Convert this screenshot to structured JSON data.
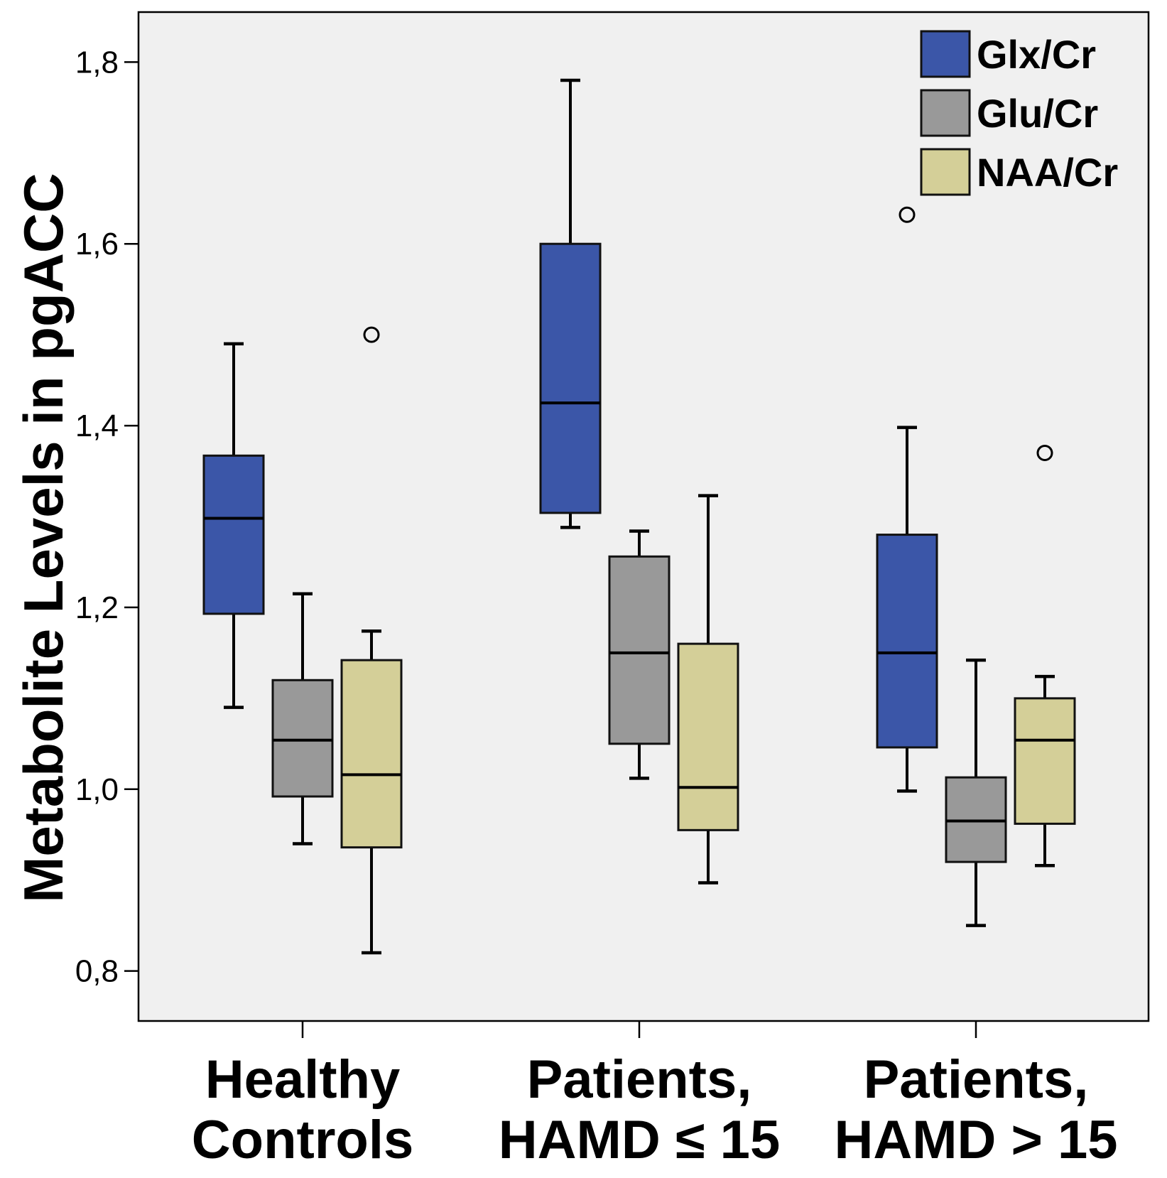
{
  "chart_data": {
    "type": "boxplot",
    "ylabel": "Metabolite Levels in pgACC",
    "xlabel": "",
    "ylim": [
      0.745,
      1.855
    ],
    "yticks": [
      0.8,
      1.0,
      1.2,
      1.4,
      1.6,
      1.8
    ],
    "ytick_labels": [
      "0,8",
      "1,0",
      "1,2",
      "1,4",
      "1,6",
      "1,8"
    ],
    "categories": [
      {
        "line1": "Healthy",
        "line2": "Controls"
      },
      {
        "line1": "Patients,",
        "line2": "HAMD ≤ 15"
      },
      {
        "line1": "Patients,",
        "line2": "HAMD > 15"
      }
    ],
    "legend_position": "top-right",
    "grid": false,
    "series": [
      {
        "name": "Glx/Cr",
        "color": "#3b56a8",
        "boxes": [
          {
            "min": 1.09,
            "q1": 1.193,
            "median": 1.298,
            "q3": 1.367,
            "max": 1.49,
            "outliers": []
          },
          {
            "min": 1.288,
            "q1": 1.304,
            "median": 1.425,
            "q3": 1.6,
            "max": 1.78,
            "outliers": []
          },
          {
            "min": 0.998,
            "q1": 1.046,
            "median": 1.15,
            "q3": 1.28,
            "max": 1.398,
            "outliers": [
              1.632
            ]
          }
        ]
      },
      {
        "name": "Glu/Cr",
        "color": "#999999",
        "boxes": [
          {
            "min": 0.94,
            "q1": 0.992,
            "median": 1.054,
            "q3": 1.12,
            "max": 1.215,
            "outliers": []
          },
          {
            "min": 1.012,
            "q1": 1.05,
            "median": 1.15,
            "q3": 1.256,
            "max": 1.284,
            "outliers": []
          },
          {
            "min": 0.85,
            "q1": 0.92,
            "median": 0.965,
            "q3": 1.013,
            "max": 1.142,
            "outliers": []
          }
        ]
      },
      {
        "name": "NAA/Cr",
        "color": "#d4cf98",
        "boxes": [
          {
            "min": 0.82,
            "q1": 0.936,
            "median": 1.016,
            "q3": 1.142,
            "max": 1.174,
            "outliers": [
              1.5
            ]
          },
          {
            "min": 0.897,
            "q1": 0.955,
            "median": 1.002,
            "q3": 1.16,
            "max": 1.323,
            "outliers": []
          },
          {
            "min": 0.916,
            "q1": 0.962,
            "median": 1.054,
            "q3": 1.1,
            "max": 1.124,
            "outliers": [
              1.37
            ]
          }
        ]
      }
    ]
  }
}
